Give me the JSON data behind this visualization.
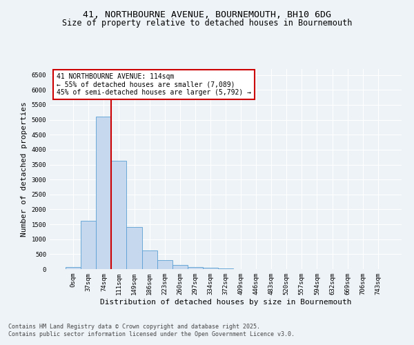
{
  "title_line1": "41, NORTHBOURNE AVENUE, BOURNEMOUTH, BH10 6DG",
  "title_line2": "Size of property relative to detached houses in Bournemouth",
  "xlabel": "Distribution of detached houses by size in Bournemouth",
  "ylabel": "Number of detached properties",
  "bar_labels": [
    "0sqm",
    "37sqm",
    "74sqm",
    "111sqm",
    "149sqm",
    "186sqm",
    "223sqm",
    "260sqm",
    "297sqm",
    "334sqm",
    "372sqm",
    "409sqm",
    "446sqm",
    "483sqm",
    "520sqm",
    "557sqm",
    "594sqm",
    "632sqm",
    "669sqm",
    "706sqm",
    "743sqm"
  ],
  "bar_values": [
    60,
    1620,
    5100,
    3620,
    1420,
    620,
    310,
    140,
    80,
    50,
    30,
    0,
    0,
    0,
    0,
    0,
    0,
    0,
    0,
    0,
    0
  ],
  "bar_color": "#c5d8ed",
  "bar_edge_color": "#5a9fd4",
  "vline_x_index": 3,
  "vline_color": "#cc0000",
  "annotation_title": "41 NORTHBOURNE AVENUE: 114sqm",
  "annotation_line2": "← 55% of detached houses are smaller (7,089)",
  "annotation_line3": "45% of semi-detached houses are larger (5,792) →",
  "annotation_box_color": "#cc0000",
  "ylim": [
    0,
    6700
  ],
  "yticks": [
    0,
    500,
    1000,
    1500,
    2000,
    2500,
    3000,
    3500,
    4000,
    4500,
    5000,
    5500,
    6000,
    6500
  ],
  "footnote1": "Contains HM Land Registry data © Crown copyright and database right 2025.",
  "footnote2": "Contains public sector information licensed under the Open Government Licence v3.0.",
  "background_color": "#eef3f8",
  "grid_color": "#ffffff",
  "title_fontsize": 9.5,
  "subtitle_fontsize": 8.5,
  "axis_label_fontsize": 8,
  "tick_fontsize": 6.5,
  "annotation_fontsize": 7,
  "footnote_fontsize": 6
}
